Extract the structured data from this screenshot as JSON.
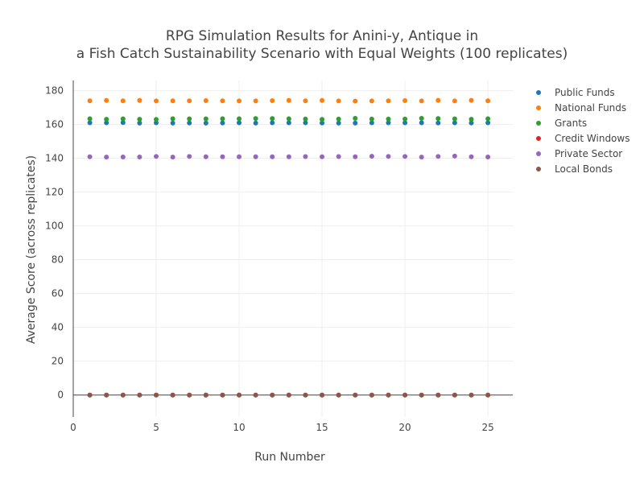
{
  "chart_data": {
    "type": "scatter",
    "title_lines": [
      "RPG Simulation Results for Anini-y, Antique in",
      "a Fish Catch Sustainability Scenario with Equal Weights (100 replicates)"
    ],
    "xlabel": "Run Number",
    "ylabel": "Average Score (across replicates)",
    "xlim": [
      0,
      26.5
    ],
    "ylim": [
      -13,
      186
    ],
    "x_ticks": [
      0,
      5,
      10,
      15,
      20,
      25
    ],
    "y_ticks": [
      0,
      20,
      40,
      60,
      80,
      100,
      120,
      140,
      160,
      180
    ],
    "grid": true,
    "legend_position": "top-right outside plot",
    "x": [
      1,
      2,
      3,
      4,
      5,
      6,
      7,
      8,
      9,
      10,
      11,
      12,
      13,
      14,
      15,
      16,
      17,
      18,
      19,
      20,
      21,
      22,
      23,
      24,
      25
    ],
    "series": [
      {
        "name": "Public Funds",
        "color": "#1f77b4",
        "values": [
          161.0,
          161.0,
          161.1,
          160.8,
          161.0,
          160.8,
          160.9,
          160.8,
          160.9,
          161.0,
          160.8,
          161.0,
          161.0,
          161.0,
          160.9,
          160.8,
          160.8,
          161.0,
          161.0,
          161.0,
          161.0,
          160.9,
          161.0,
          160.9,
          161.0
        ]
      },
      {
        "name": "National Funds",
        "color": "#ff7f0e",
        "values": [
          174.0,
          174.2,
          174.0,
          174.2,
          173.9,
          174.0,
          174.0,
          174.1,
          174.0,
          173.9,
          173.9,
          174.1,
          174.2,
          174.0,
          174.2,
          173.9,
          173.8,
          173.9,
          174.0,
          174.1,
          173.9,
          174.3,
          173.9,
          174.3,
          174.0
        ]
      },
      {
        "name": "Grants",
        "color": "#2ca02c",
        "values": [
          163.4,
          163.1,
          163.3,
          163.1,
          163.0,
          163.4,
          163.3,
          163.3,
          163.4,
          163.4,
          163.5,
          163.5,
          163.4,
          163.2,
          163.0,
          163.2,
          163.6,
          163.2,
          163.2,
          163.2,
          163.6,
          163.5,
          163.3,
          163.1,
          163.4
        ]
      },
      {
        "name": "Credit Windows",
        "color": "#d62728",
        "values": [
          0,
          0,
          0,
          0,
          0,
          0,
          0,
          0,
          0,
          0,
          0,
          0,
          0,
          0,
          0,
          0,
          0,
          0,
          0,
          0,
          0,
          0,
          0,
          0,
          0
        ]
      },
      {
        "name": "Private Sector",
        "color": "#9467bd",
        "values": [
          140.9,
          140.7,
          140.8,
          140.8,
          141.1,
          140.7,
          141.1,
          140.9,
          140.9,
          140.9,
          140.9,
          140.9,
          140.9,
          141.0,
          140.9,
          141.0,
          140.9,
          141.2,
          141.1,
          141.1,
          140.7,
          141.1,
          141.3,
          140.9,
          140.8
        ]
      },
      {
        "name": "Local Bonds",
        "color": "#8c564b",
        "values": [
          0,
          0,
          0,
          0,
          0,
          0,
          0,
          0,
          0,
          0,
          0,
          0,
          0,
          0,
          0,
          0,
          0,
          0,
          0,
          0,
          0,
          0,
          0,
          0,
          0
        ]
      }
    ]
  }
}
